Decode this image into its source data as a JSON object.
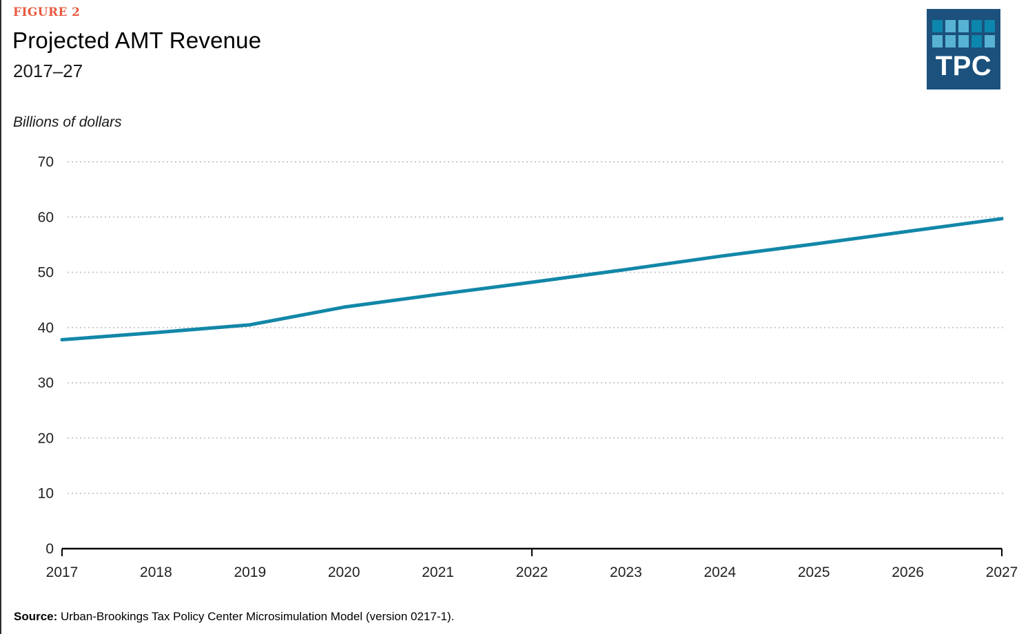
{
  "header": {
    "figure_label": "FIGURE 2"
  },
  "logo": {
    "text": "TPC",
    "background_color": "#1b517c",
    "square_colors": {
      "dark": "#0d86ae",
      "light": "#58b2d4"
    },
    "squares": [
      "dark",
      "light",
      "light",
      "dark",
      "dark",
      "light",
      "light",
      "light",
      "dark",
      "light"
    ]
  },
  "footer": {
    "source_prefix": "Source:",
    "source_text": " Urban-Brookings Tax Policy Center Microsimulation Model (version 0217-1)."
  },
  "chart_data": {
    "type": "line",
    "title": "Projected AMT Revenue",
    "subtitle": "2017–27",
    "ylabel": "Billions of dollars",
    "xlabel": "",
    "x": [
      2017,
      2018,
      2019,
      2020,
      2021,
      2022,
      2023,
      2024,
      2025,
      2026,
      2027
    ],
    "series": [
      {
        "name": "Projected AMT revenue (billions of dollars)",
        "color": "#1287a8",
        "values": [
          37.8,
          39.1,
          40.5,
          43.7,
          46.0,
          48.2,
          50.5,
          52.9,
          55.1,
          57.4,
          59.7
        ]
      }
    ],
    "ylim": [
      0,
      70
    ],
    "ytick_interval": 10,
    "yticks": [
      0,
      10,
      20,
      30,
      40,
      50,
      60,
      70
    ],
    "xticks": [
      2017,
      2018,
      2019,
      2020,
      2021,
      2022,
      2023,
      2024,
      2025,
      2026,
      2027
    ],
    "x_axis_tick_marks": [
      2017,
      2022,
      2027
    ],
    "grid": "horizontal-dotted",
    "grid_color": "#c8c8c8",
    "axis_color": "#000000",
    "legend": "none"
  }
}
